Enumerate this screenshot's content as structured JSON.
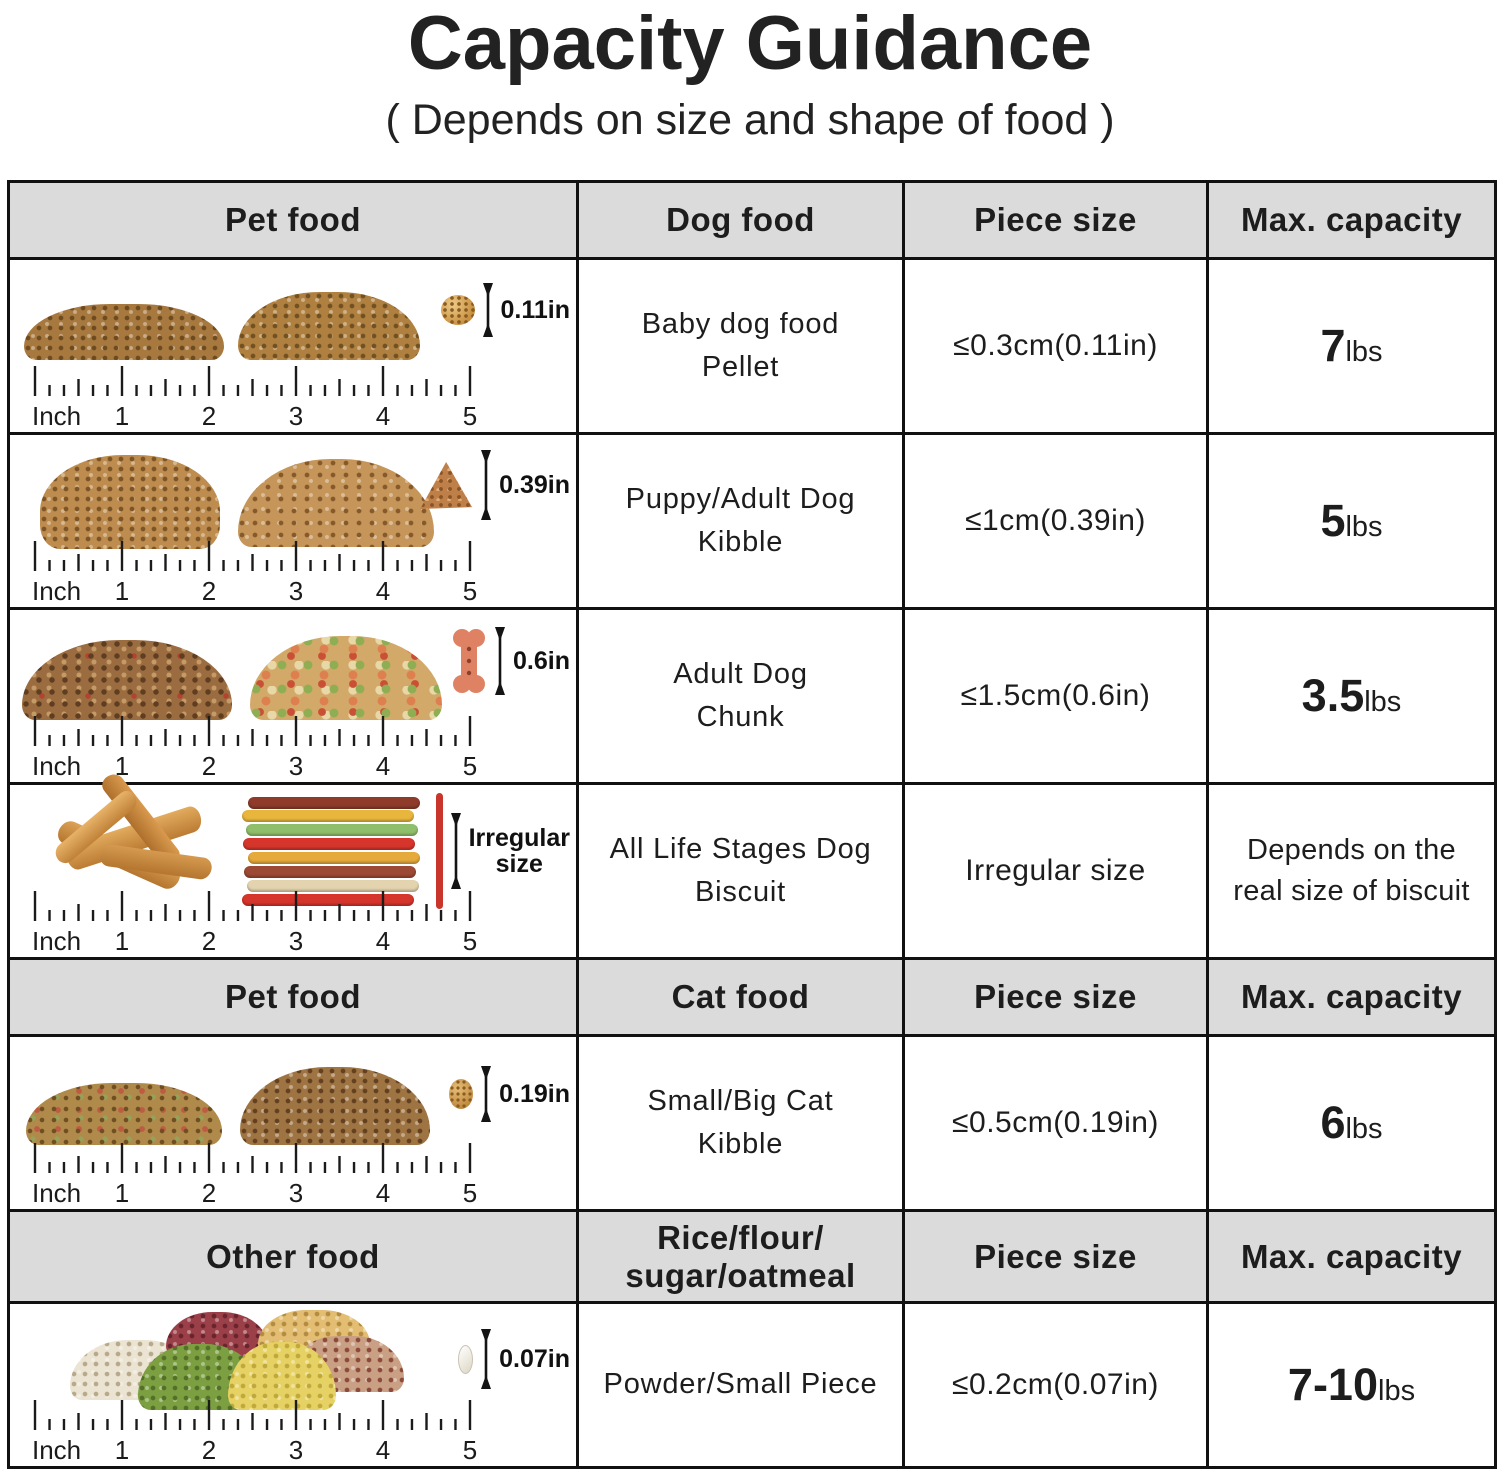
{
  "title": "Capacity Guidance",
  "subtitle": "( Depends on size and shape of food )",
  "ruler": {
    "unit": "Inch",
    "marks": [
      "1",
      "2",
      "3",
      "4",
      "5"
    ]
  },
  "colors": {
    "header_bg": "#dbdbdb",
    "border": "#111111",
    "stick_red": "#c9352b"
  },
  "table": {
    "headers": [
      {
        "pet": "Pet food",
        "food": "Dog food",
        "size": "Piece size",
        "capacity": "Max. capacity"
      },
      {
        "pet": "Pet food",
        "food": "Cat food",
        "size": "Piece size",
        "capacity": "Max. capacity"
      },
      {
        "pet": "Other food",
        "food": "Rice/flour/\nsugar/oatmeal",
        "size": "Piece size",
        "capacity": "Max. capacity"
      }
    ],
    "rows": [
      {
        "size_label": "0.11in",
        "name": "Baby dog food\nPellet",
        "piece_size": "≤0.3cm(0.11in)",
        "capacity_value": "7",
        "capacity_unit": "lbs"
      },
      {
        "size_label": "0.39in",
        "name": "Puppy/Adult Dog\nKibble",
        "piece_size": "≤1cm(0.39in)",
        "capacity_value": "5",
        "capacity_unit": "lbs"
      },
      {
        "size_label": "0.6in",
        "name": "Adult Dog\nChunk",
        "piece_size": "≤1.5cm(0.6in)",
        "capacity_value": "3.5",
        "capacity_unit": "lbs"
      },
      {
        "size_label": "Irregular\nsize",
        "name": "All Life Stages Dog\nBiscuit",
        "piece_size": "Irregular size",
        "capacity_text": "Depends on the\nreal size of biscuit"
      },
      {
        "size_label": "0.19in",
        "name": "Small/Big Cat\nKibble",
        "piece_size": "≤0.5cm(0.19in)",
        "capacity_value": "6",
        "capacity_unit": "lbs"
      },
      {
        "size_label": "0.07in",
        "name": "Powder/Small Piece",
        "piece_size": "≤0.2cm(0.07in)",
        "capacity_value": "7-10",
        "capacity_unit": "lbs"
      }
    ]
  }
}
